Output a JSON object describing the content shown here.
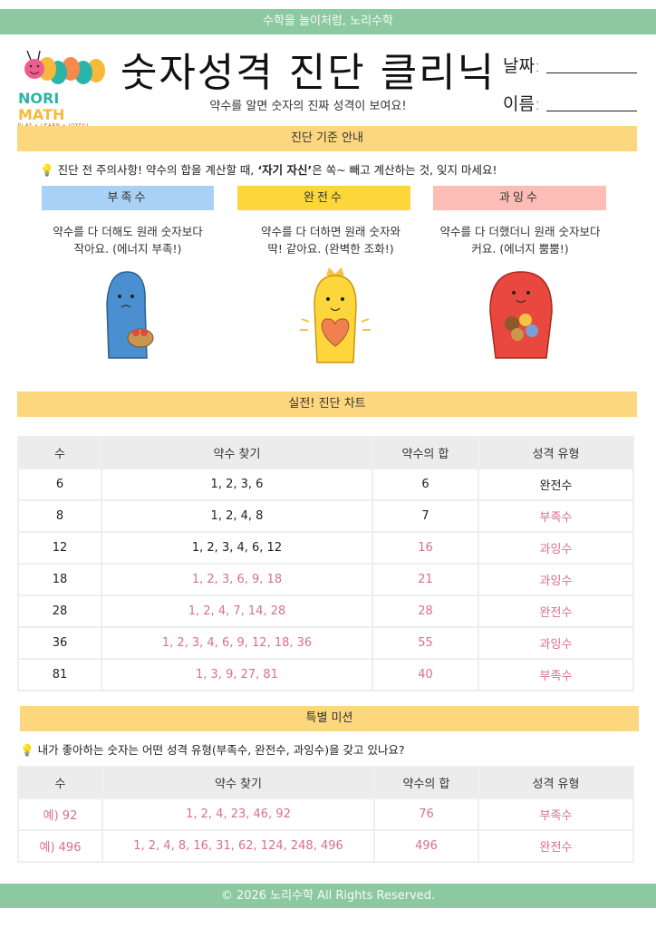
{
  "top_banner": "수학을 놀이처럼, 노리수학",
  "logo": {
    "text": "NORI MATH",
    "tagline": "PLAY • LEARN • JOYFUL"
  },
  "title": "숫자성격 진단 클리닉",
  "subtitle": "약수를 알면 숫자의 진짜 성격이 보여요!",
  "date_label": "날짜:",
  "name_label": "이름:",
  "section1": "진단 기준 안내",
  "tip1": {
    "before": "진단 전 주의사항! 약수의 합을 계산할 때, ",
    "bold": "‘자기 자신’",
    "after": "은 쏙~ 빼고 계산하는 것, 잊지 마세요!"
  },
  "types": [
    {
      "label": "부족수",
      "line1": "약수를 다 더해도 원래 숫자보다",
      "line2": "작아요. (에너지 부족!)",
      "color": "#a9d1f5"
    },
    {
      "label": "완전수",
      "line1": "약수를 다 더하면 원래 숫자와",
      "line2": "딱! 같아요. (완벽한 조화!)",
      "color": "#fcd63a"
    },
    {
      "label": "과잉수",
      "line1": "약수를 다 더했더니 원래 숫자보다",
      "line2": "커요. (에너지 뿜뿜!)",
      "color": "#fbbdb5"
    }
  ],
  "section2": "실전! 진단 차트",
  "headers": [
    "수",
    "약수 찾기",
    "약수의 합",
    "성격 유형"
  ],
  "chart_rows": [
    {
      "n": "6",
      "div": "1, 2, 3, 6",
      "sum": "6",
      "type": "완전수",
      "hl": [
        false,
        false,
        false
      ]
    },
    {
      "n": "8",
      "div": "1, 2, 4, 8",
      "sum": "7",
      "type": "부족수",
      "hl": [
        false,
        false,
        true
      ]
    },
    {
      "n": "12",
      "div": "1, 2, 3, 4, 6, 12",
      "sum": "16",
      "type": "과잉수",
      "hl": [
        false,
        true,
        true
      ]
    },
    {
      "n": "18",
      "div": "1, 2, 3, 6, 9, 18",
      "sum": "21",
      "type": "과잉수",
      "hl": [
        true,
        true,
        true
      ]
    },
    {
      "n": "28",
      "div": "1, 2, 4, 7, 14, 28",
      "sum": "28",
      "type": "완전수",
      "hl": [
        true,
        true,
        true
      ]
    },
    {
      "n": "36",
      "div": "1, 2, 3, 4, 6, 9, 12, 18, 36",
      "sum": "55",
      "type": "과잉수",
      "hl": [
        true,
        true,
        true
      ]
    },
    {
      "n": "81",
      "div": "1, 3, 9, 27, 81",
      "sum": "40",
      "type": "부족수",
      "hl": [
        true,
        true,
        true
      ]
    }
  ],
  "section3": "특별 미션",
  "tip2": "내가 좋아하는 숫자는 어떤 성격 유형(부족수, 완전수, 과잉수)을 갖고 있나요?",
  "mission_rows": [
    {
      "n": "예) 92",
      "div": "1, 2, 4, 23, 46, 92",
      "sum": "76",
      "type": "부족수"
    },
    {
      "n": "예) 496",
      "div": "1, 2, 4, 8, 16, 31, 62, 124, 248, 496",
      "sum": "496",
      "type": "완전수"
    }
  ],
  "footer": "© 2026 노리수학 All Rights Reserved.",
  "colors": {
    "green": "#8dc9a0",
    "yellow": "#fdd77e",
    "highlight": "#d9708a"
  }
}
